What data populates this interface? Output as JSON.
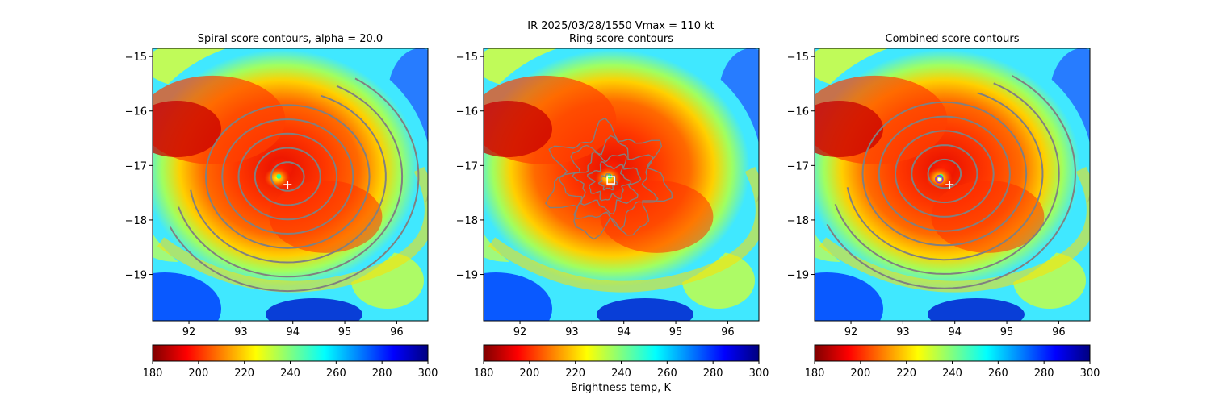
{
  "figure": {
    "suptitle_line1": "IR  2025/03/28/1550    Vmax = 110 kt",
    "colorbar_label": "Brightness temp, K",
    "colormap": [
      "#800000",
      "#ff0000",
      "#ff8000",
      "#ffff00",
      "#80ff80",
      "#00ffff",
      "#0080ff",
      "#0000ff",
      "#000080"
    ]
  },
  "chart_data": [
    {
      "type": "heatmap",
      "title": "Spiral score contours, alpha = 20.0",
      "xlim": [
        91.3,
        96.6
      ],
      "ylim": [
        -19.85,
        -14.85
      ],
      "xticks": [
        92,
        93,
        94,
        95,
        96
      ],
      "yticks": [
        -15,
        -16,
        -17,
        -18,
        -19
      ],
      "colorbar": {
        "range": [
          180,
          300
        ],
        "ticks": [
          180,
          200,
          220,
          240,
          260,
          280,
          300
        ]
      },
      "eye_center": [
        93.7,
        -17.2
      ],
      "contour_center": [
        93.9,
        -17.35
      ],
      "contour_radii": [
        0.3,
        0.6,
        0.9,
        1.2,
        1.5,
        1.8,
        2.1,
        2.4
      ],
      "markers": [
        {
          "name": "best-track-center",
          "symbol": "+",
          "x": 93.9,
          "y": -17.35,
          "color": "#ffffff"
        }
      ]
    },
    {
      "type": "heatmap",
      "title": "Ring score contours",
      "xlim": [
        91.3,
        96.6
      ],
      "ylim": [
        -19.85,
        -14.85
      ],
      "xticks": [
        92,
        93,
        94,
        95,
        96
      ],
      "yticks": [
        -15,
        -16,
        -17,
        -18,
        -19
      ],
      "colorbar": {
        "range": [
          180,
          300
        ],
        "ticks": [
          180,
          200,
          220,
          240,
          260,
          280,
          300
        ]
      },
      "eye_center": [
        93.7,
        -17.2
      ],
      "contour_center": [
        93.7,
        -17.3
      ],
      "contour_radii": [
        0.15,
        0.35,
        0.55,
        0.8,
        1.05
      ],
      "markers": [
        {
          "name": "ring-center",
          "symbol": "square",
          "x": 93.75,
          "y": -17.27,
          "color": "#ffffff"
        }
      ]
    },
    {
      "type": "heatmap",
      "title": "Combined score contours",
      "xlim": [
        91.3,
        96.6
      ],
      "ylim": [
        -19.85,
        -14.85
      ],
      "xticks": [
        92,
        93,
        94,
        95,
        96
      ],
      "yticks": [
        -15,
        -16,
        -17,
        -18,
        -19
      ],
      "colorbar": {
        "range": [
          180,
          300
        ],
        "ticks": [
          180,
          200,
          220,
          240,
          260,
          280,
          300
        ]
      },
      "eye_center": [
        93.7,
        -17.2
      ],
      "contour_center": [
        93.8,
        -17.3
      ],
      "contour_radii": [
        0.3,
        0.6,
        0.9,
        1.2,
        1.5,
        1.8,
        2.1,
        2.4
      ],
      "markers": [
        {
          "name": "best-track-center",
          "symbol": "+",
          "x": 93.9,
          "y": -17.35,
          "color": "#ffffff"
        },
        {
          "name": "combined-center",
          "symbol": "circle",
          "x": 93.7,
          "y": -17.25,
          "color": "#8a2be2"
        }
      ]
    }
  ]
}
